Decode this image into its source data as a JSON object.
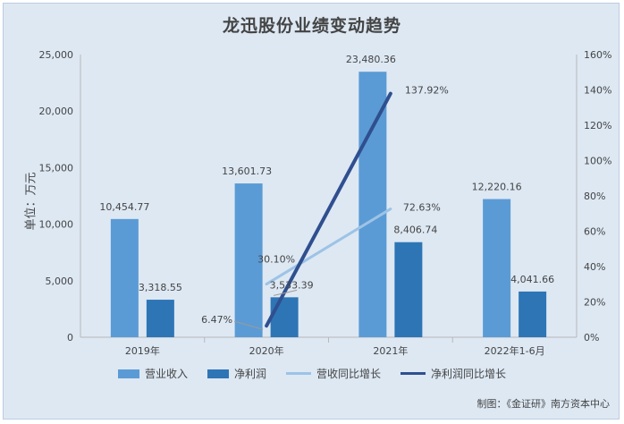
{
  "title": "龙迅股份业绩变动趋势",
  "credit": "制图：《金证研》南方资本中心",
  "chart_data": {
    "type": "bar",
    "title": "龙迅股份业绩变动趋势",
    "ylabel": "单位：万元",
    "categories": [
      "2019年",
      "2020年",
      "2021年",
      "2022年1-6月"
    ],
    "ylim": [
      0,
      25000
    ],
    "yticks": [
      "0",
      "5,000",
      "10,000",
      "15,000",
      "20,000",
      "25,000"
    ],
    "y2lim": [
      0,
      160
    ],
    "y2ticks": [
      "0%",
      "20%",
      "40%",
      "60%",
      "80%",
      "100%",
      "120%",
      "140%",
      "160%"
    ],
    "series": [
      {
        "name": "营业收入",
        "kind": "bar",
        "color": "#5b9bd5",
        "values": [
          10454.77,
          13601.73,
          23480.36,
          12220.16
        ],
        "labels": [
          "10,454.77",
          "13,601.73",
          "23,480.36",
          "12,220.16"
        ]
      },
      {
        "name": "净利润",
        "kind": "bar",
        "color": "#2e75b6",
        "values": [
          3318.55,
          3533.39,
          8406.74,
          4041.66
        ],
        "labels": [
          "3,318.55",
          "3,533.39",
          "8,406.74",
          "4,041.66"
        ]
      },
      {
        "name": "营收同比增长",
        "kind": "line",
        "axis": "right",
        "color": "#9dc3e6",
        "values": [
          null,
          30.1,
          72.63,
          null
        ],
        "labels": [
          "",
          "30.10%",
          "72.63%",
          ""
        ]
      },
      {
        "name": "净利润同比增长",
        "kind": "line",
        "axis": "right",
        "color": "#2f4f8f",
        "values": [
          null,
          6.47,
          137.92,
          null
        ],
        "labels": [
          "",
          "6.47%",
          "137.92%",
          ""
        ]
      }
    ],
    "legend_position": "bottom",
    "grid": false
  }
}
